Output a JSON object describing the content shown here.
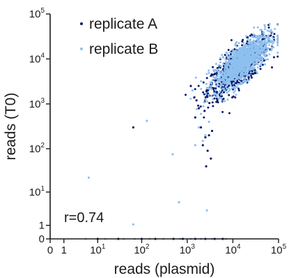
{
  "chart_data": {
    "type": "scatter",
    "xlabel": "reads (plasmid)",
    "ylabel": "reads (T0)",
    "x_scale": "symlog",
    "y_scale": "symlog",
    "xlim": [
      0,
      100000
    ],
    "ylim": [
      0,
      100000
    ],
    "x_ticks": [
      {
        "value": 0,
        "base": "0",
        "exp": ""
      },
      {
        "value": 1,
        "base": "1",
        "exp": ""
      },
      {
        "value": 10,
        "base": "10",
        "exp": "1"
      },
      {
        "value": 100,
        "base": "10",
        "exp": "2"
      },
      {
        "value": 1000,
        "base": "10",
        "exp": "3"
      },
      {
        "value": 10000,
        "base": "10",
        "exp": "4"
      },
      {
        "value": 100000,
        "base": "10",
        "exp": "5"
      }
    ],
    "y_ticks": [
      {
        "value": 0,
        "base": "0",
        "exp": ""
      },
      {
        "value": 1,
        "base": "1",
        "exp": ""
      },
      {
        "value": 10,
        "base": "10",
        "exp": "1"
      },
      {
        "value": 100,
        "base": "10",
        "exp": "2"
      },
      {
        "value": 1000,
        "base": "10",
        "exp": "3"
      },
      {
        "value": 10000,
        "base": "10",
        "exp": "4"
      },
      {
        "value": 100000,
        "base": "10",
        "exp": "5"
      }
    ],
    "legend_position": "top-left",
    "annotation": "r=0.74",
    "grid": false,
    "series": [
      {
        "name": "replicate A",
        "color": "#0b1a6b",
        "cluster": {
          "center": [
            13000,
            6500
          ],
          "spread": 0.33,
          "count": 800
        },
        "points": [
          [
            65,
            300
          ],
          [
            1500,
            500
          ],
          [
            2000,
            300
          ],
          [
            2500,
            180
          ],
          [
            2200,
            120
          ],
          [
            2800,
            90
          ],
          [
            3000,
            200
          ],
          [
            1800,
            800
          ],
          [
            1200,
            2500
          ],
          [
            3300,
            60
          ],
          [
            2600,
            40
          ],
          [
            3500,
            250
          ],
          [
            1600,
            1200
          ],
          [
            2400,
            700
          ],
          [
            10,
            0
          ],
          [
            30,
            0
          ],
          [
            100,
            0
          ],
          [
            200,
            0
          ],
          [
            500,
            0
          ],
          [
            800,
            0
          ],
          [
            1500,
            0
          ],
          [
            2500,
            0
          ],
          [
            4000,
            0
          ],
          [
            6000,
            0
          ]
        ]
      },
      {
        "name": "replicate B",
        "color": "#8ec0ef",
        "cluster": {
          "center": [
            16000,
            8500
          ],
          "spread": 0.3,
          "count": 1200
        },
        "points": [
          [
            6,
            22
          ],
          [
            65,
            1.1
          ],
          [
            130,
            420
          ],
          [
            480,
            75
          ],
          [
            660,
            5.5
          ],
          [
            2700,
            3.3
          ],
          [
            2200,
            150
          ],
          [
            1500,
            120
          ],
          [
            3000,
            400
          ],
          [
            2500,
            200
          ],
          [
            1800,
            300
          ],
          [
            2000,
            600
          ],
          [
            1300,
            2000
          ],
          [
            5,
            0
          ],
          [
            15,
            0
          ],
          [
            40,
            0
          ],
          [
            70,
            0
          ],
          [
            150,
            0
          ],
          [
            300,
            0
          ],
          [
            700,
            0
          ],
          [
            1200,
            0
          ],
          [
            2000,
            0
          ],
          [
            3500,
            0
          ],
          [
            7000,
            0
          ]
        ]
      }
    ]
  }
}
